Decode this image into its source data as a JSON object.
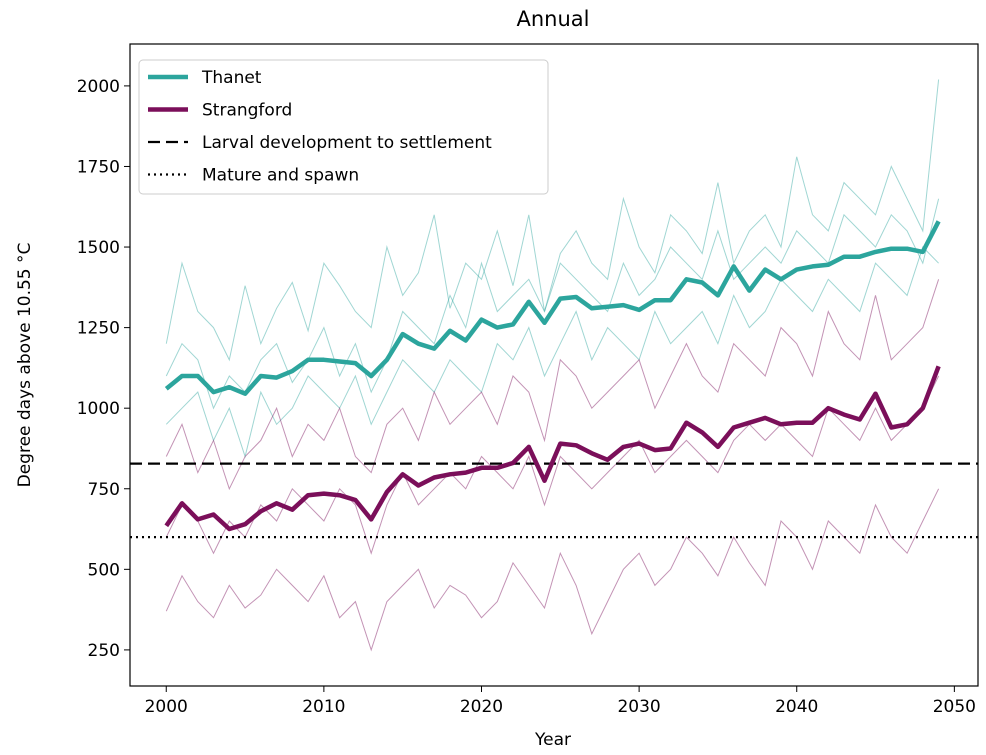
{
  "chart_data": {
    "type": "line",
    "title": "Annual",
    "xlabel": "Year",
    "ylabel": "Degree days above 10.55 °C",
    "x": [
      2000,
      2001,
      2002,
      2003,
      2004,
      2005,
      2006,
      2007,
      2008,
      2009,
      2010,
      2011,
      2012,
      2013,
      2014,
      2015,
      2016,
      2017,
      2018,
      2019,
      2020,
      2021,
      2022,
      2023,
      2024,
      2025,
      2026,
      2027,
      2028,
      2029,
      2030,
      2031,
      2032,
      2033,
      2034,
      2035,
      2036,
      2037,
      2038,
      2039,
      2040,
      2041,
      2042,
      2043,
      2044,
      2045,
      2046,
      2047,
      2048,
      2049
    ],
    "xlim": [
      1997.7,
      2051.5
    ],
    "xticks": [
      2000,
      2010,
      2020,
      2030,
      2040,
      2050
    ],
    "ylim": [
      138,
      2130
    ],
    "yticks": [
      250,
      500,
      750,
      1000,
      1250,
      1500,
      1750,
      2000
    ],
    "legend": "upper left",
    "series": [
      {
        "name": "Thanet",
        "color": "#2ca59d",
        "values": [
          1060,
          1100,
          1100,
          1050,
          1065,
          1045,
          1100,
          1095,
          1115,
          1150,
          1150,
          1145,
          1140,
          1100,
          1150,
          1230,
          1200,
          1185,
          1240,
          1210,
          1275,
          1250,
          1260,
          1330,
          1265,
          1340,
          1345,
          1310,
          1315,
          1320,
          1305,
          1335,
          1335,
          1400,
          1390,
          1350,
          1440,
          1365,
          1430,
          1400,
          1430,
          1440,
          1445,
          1470,
          1470,
          1485,
          1495,
          1495,
          1485,
          1580
        ]
      },
      {
        "name": "Strangford",
        "color": "#7b0f5a",
        "values": [
          635,
          705,
          655,
          670,
          625,
          640,
          680,
          705,
          685,
          730,
          735,
          730,
          715,
          655,
          740,
          795,
          760,
          785,
          795,
          800,
          815,
          815,
          830,
          880,
          775,
          890,
          885,
          860,
          840,
          880,
          890,
          870,
          875,
          955,
          925,
          880,
          940,
          955,
          970,
          950,
          955,
          955,
          1000,
          980,
          965,
          1045,
          940,
          950,
          1000,
          1130
        ]
      }
    ],
    "references": [
      {
        "name": "Larval development to settlement",
        "color": "#000000",
        "style": "dashed",
        "value": 828
      },
      {
        "name": "Mature and spawn",
        "color": "#000000",
        "style": "dotted",
        "value": 600
      }
    ],
    "members": [
      {
        "color": "#2ca59d",
        "values": [
          1200,
          1450,
          1300,
          1250,
          1150,
          1380,
          1200,
          1310,
          1390,
          1240,
          1450,
          1380,
          1300,
          1250,
          1500,
          1350,
          1420,
          1600,
          1310,
          1450,
          1400,
          1550,
          1380,
          1600,
          1300,
          1480,
          1550,
          1450,
          1400,
          1650,
          1500,
          1420,
          1600,
          1550,
          1480,
          1700,
          1450,
          1550,
          1600,
          1500,
          1780,
          1600,
          1550,
          1700,
          1650,
          1600,
          1750,
          1650,
          1550,
          2020
        ]
      },
      {
        "color": "#2ca59d",
        "values": [
          950,
          1000,
          1050,
          900,
          1000,
          850,
          1050,
          950,
          1000,
          1100,
          1050,
          1000,
          1100,
          950,
          1050,
          1150,
          1100,
          1050,
          1150,
          1100,
          1050,
          1200,
          1150,
          1250,
          1100,
          1200,
          1300,
          1150,
          1250,
          1200,
          1150,
          1300,
          1200,
          1250,
          1300,
          1200,
          1350,
          1250,
          1300,
          1400,
          1350,
          1300,
          1400,
          1350,
          1300,
          1450,
          1400,
          1350,
          1500,
          1450
        ]
      },
      {
        "color": "#2ca59d",
        "values": [
          1100,
          1200,
          1150,
          1000,
          1100,
          1050,
          1150,
          1200,
          1080,
          1150,
          1250,
          1100,
          1200,
          1050,
          1150,
          1300,
          1250,
          1200,
          1350,
          1250,
          1450,
          1300,
          1350,
          1400,
          1300,
          1450,
          1400,
          1350,
          1300,
          1450,
          1350,
          1400,
          1500,
          1450,
          1400,
          1550,
          1400,
          1450,
          1500,
          1450,
          1550,
          1500,
          1450,
          1600,
          1550,
          1500,
          1600,
          1550,
          1450,
          1650
        ]
      },
      {
        "color": "#7b0f5a",
        "values": [
          850,
          950,
          800,
          900,
          750,
          850,
          900,
          1000,
          850,
          950,
          900,
          1000,
          850,
          800,
          950,
          1000,
          900,
          1050,
          950,
          1000,
          1050,
          950,
          1100,
          1050,
          900,
          1150,
          1100,
          1000,
          1050,
          1100,
          1150,
          1000,
          1100,
          1200,
          1100,
          1050,
          1200,
          1150,
          1100,
          1250,
          1200,
          1100,
          1300,
          1200,
          1150,
          1350,
          1150,
          1200,
          1250,
          1400
        ]
      },
      {
        "color": "#7b0f5a",
        "values": [
          370,
          480,
          400,
          350,
          450,
          380,
          420,
          500,
          450,
          400,
          480,
          350,
          400,
          250,
          400,
          450,
          500,
          380,
          450,
          420,
          350,
          400,
          520,
          450,
          380,
          550,
          450,
          300,
          400,
          500,
          550,
          450,
          500,
          600,
          550,
          480,
          600,
          520,
          450,
          650,
          600,
          500,
          650,
          600,
          550,
          700,
          600,
          550,
          650,
          750
        ]
      },
      {
        "color": "#7b0f5a",
        "values": [
          600,
          700,
          650,
          550,
          650,
          600,
          700,
          650,
          750,
          700,
          650,
          750,
          700,
          550,
          700,
          800,
          700,
          750,
          800,
          750,
          850,
          800,
          750,
          850,
          700,
          850,
          800,
          750,
          800,
          850,
          900,
          800,
          850,
          900,
          850,
          800,
          900,
          950,
          900,
          950,
          900,
          850,
          1000,
          950,
          900,
          1000,
          900,
          950,
          1000,
          1100
        ]
      }
    ]
  }
}
